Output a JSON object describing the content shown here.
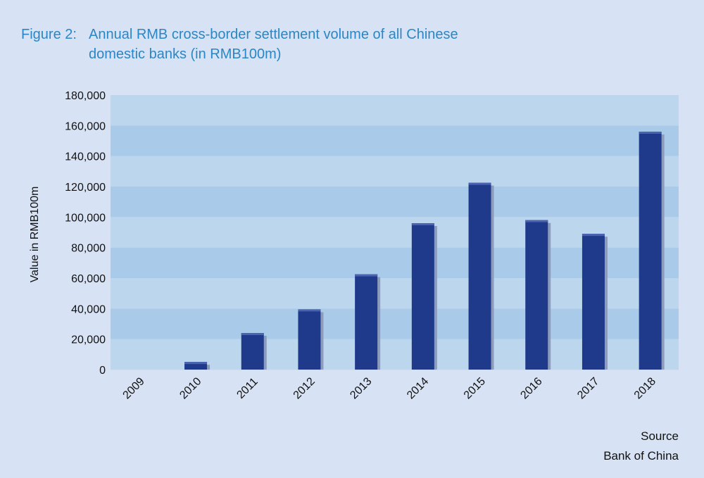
{
  "figure": {
    "label": "Figure 2:",
    "title": "Annual RMB cross-border settlement volume of all Chinese domestic banks (in RMB100m)"
  },
  "chart_data": {
    "type": "bar",
    "categories": [
      "2009",
      "2010",
      "2011",
      "2012",
      "2013",
      "2014",
      "2015",
      "2016",
      "2017",
      "2018"
    ],
    "values": [
      0,
      5000,
      24000,
      39500,
      62500,
      96000,
      122500,
      98000,
      89000,
      156000
    ],
    "ylabel": "Value in RMB100m",
    "xlabel": "",
    "ylim": [
      0,
      180000
    ],
    "y_ticks": [
      0,
      20000,
      40000,
      60000,
      80000,
      100000,
      120000,
      140000,
      160000,
      180000
    ],
    "y_tick_labels": [
      "0",
      "20,000",
      "40,000",
      "60,000",
      "80,000",
      "100,000",
      "120,000",
      "140,000",
      "160,000",
      "180,000"
    ],
    "grid": "horizontal bands",
    "colors": {
      "bar": "#1f3a8a",
      "bar_top": "#4a62b0",
      "bar_shadow": "#8d9cbc",
      "band_dark": "#aacaea",
      "band_light": "#bcd6ee",
      "title": "#2a86c5",
      "background": "#d7e3f4"
    }
  },
  "source": {
    "heading": "Source",
    "text": "Bank of China"
  }
}
